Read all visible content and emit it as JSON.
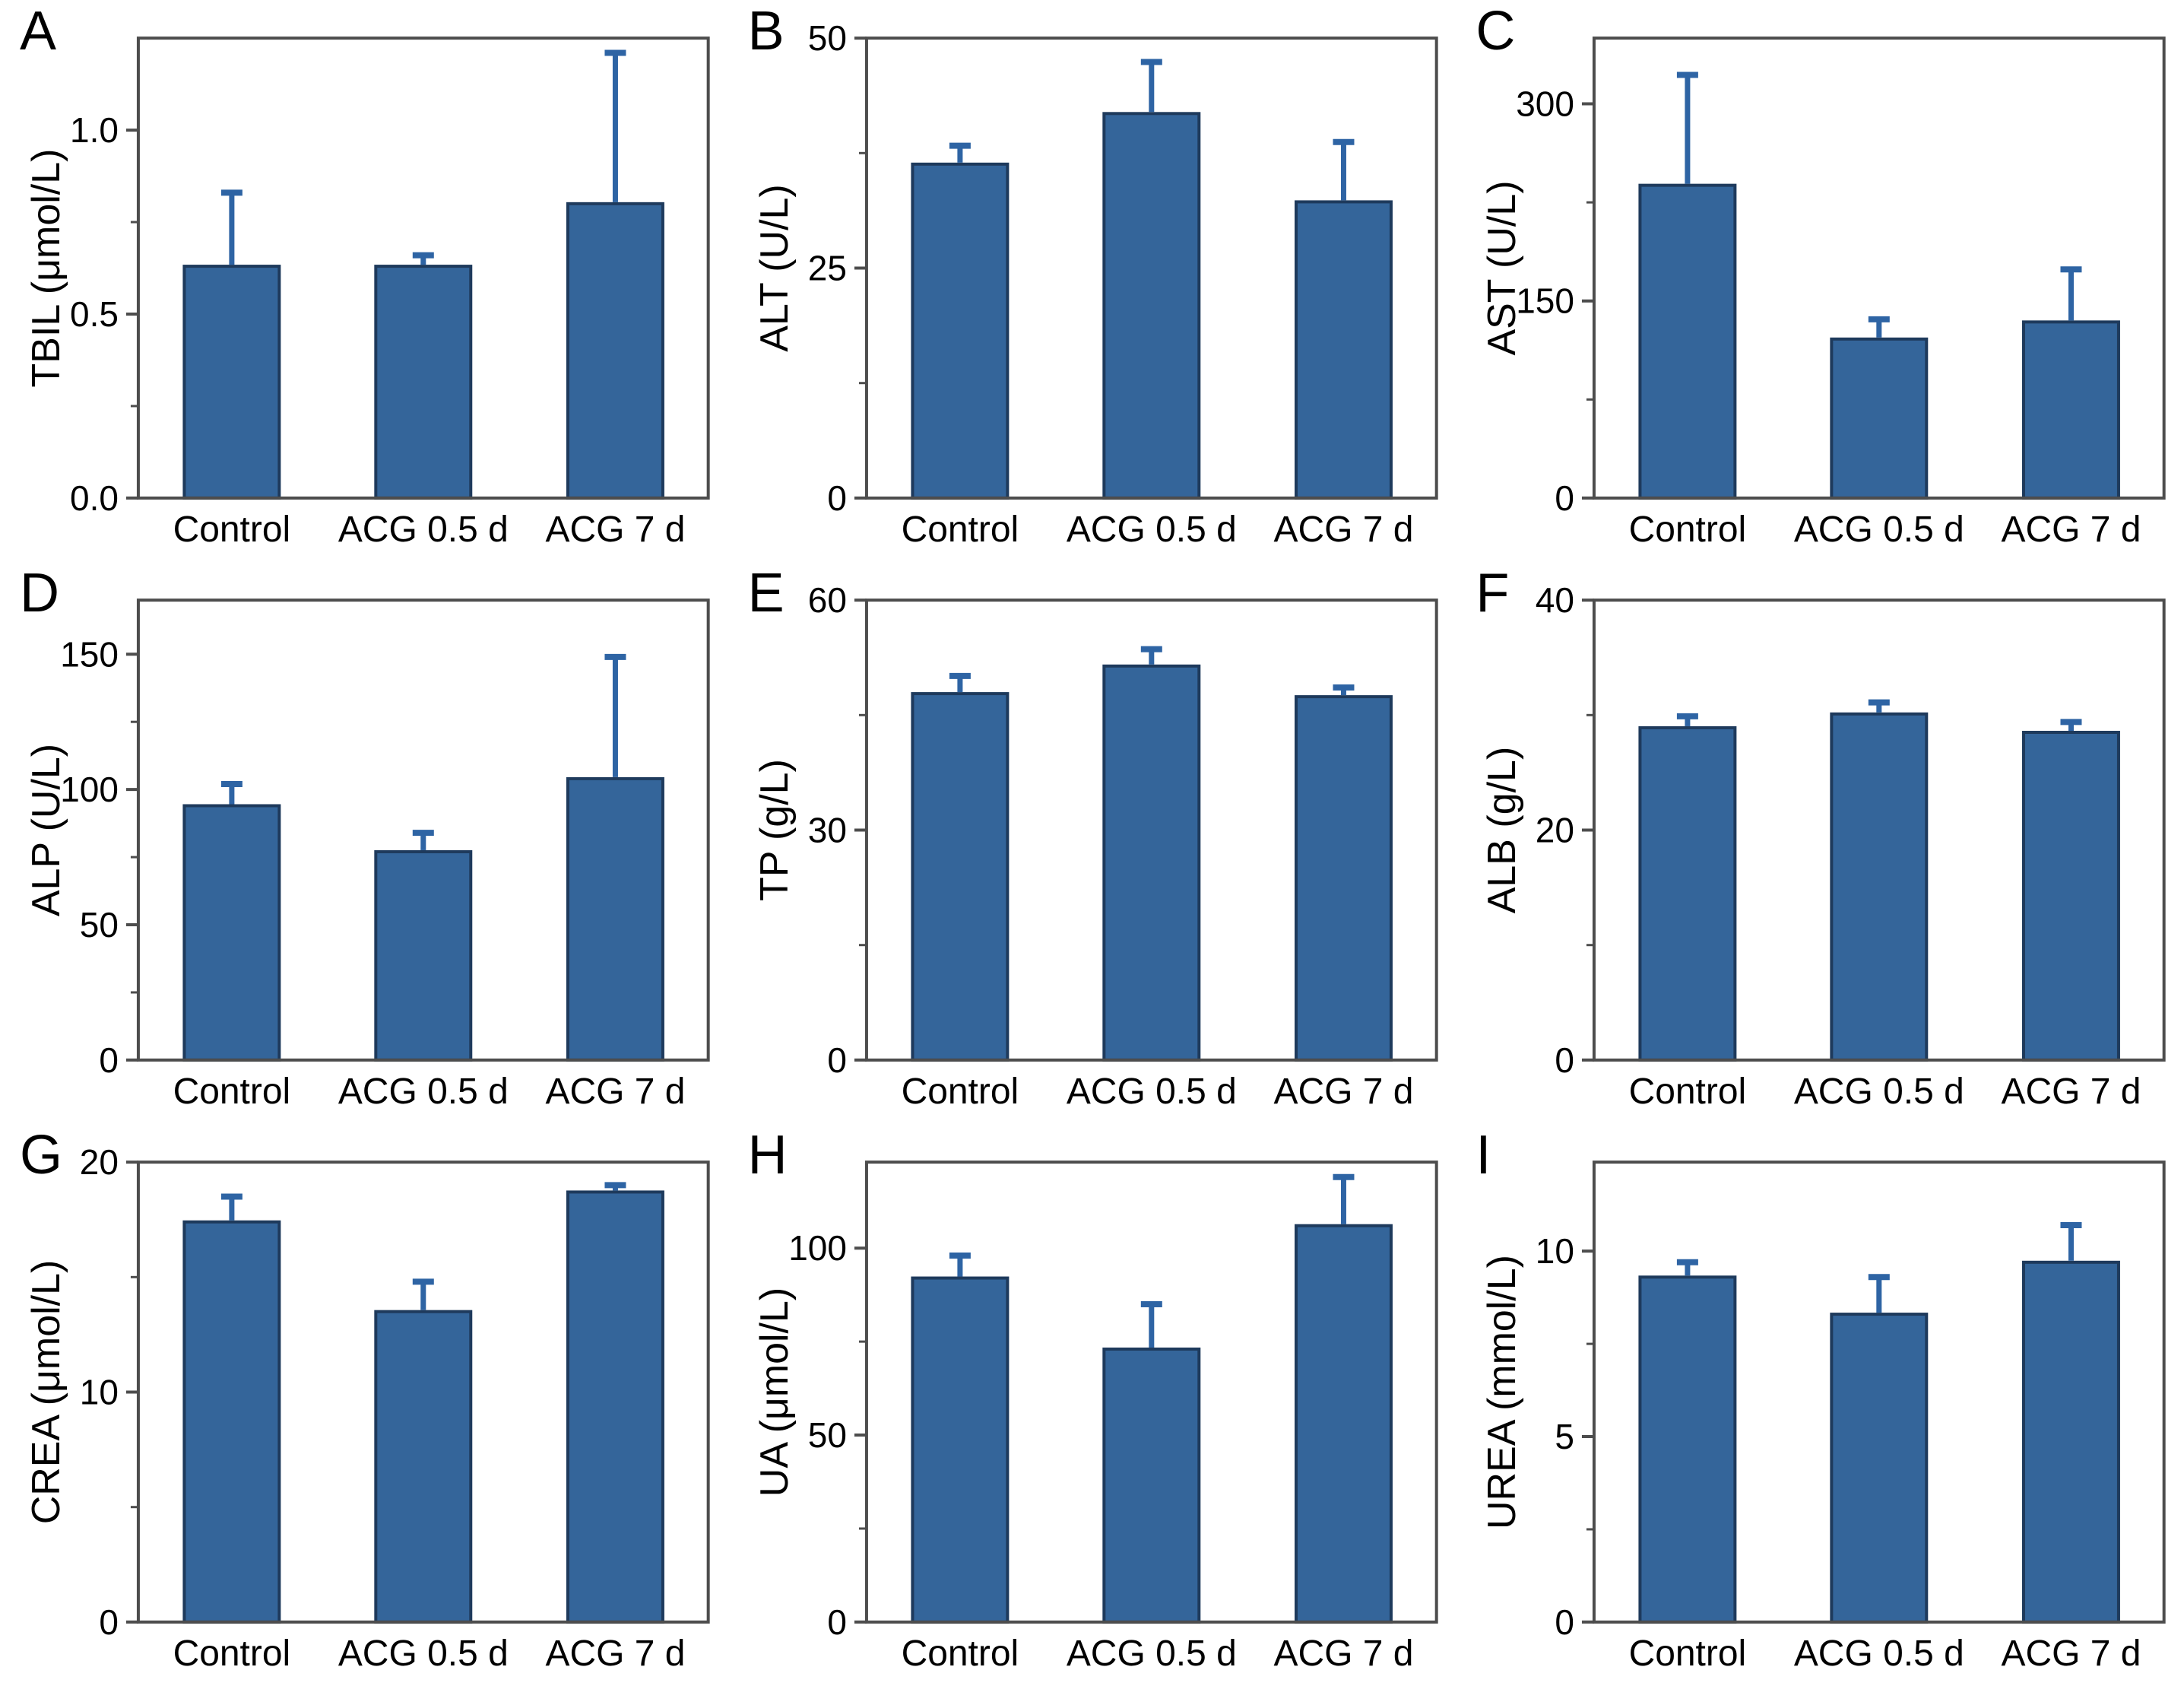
{
  "figure": {
    "description": "Nine-panel (A-I) serum biochemistry bar chart figure comparing Control, ACG 0.5 d and ACG 7 d groups, mean + SD error bars",
    "groups": [
      "Control",
      "ACG 0.5 d",
      "ACG 7 d"
    ]
  },
  "colors": {
    "bar_fill": "#34659a",
    "bar_edge": "#1e3a5c",
    "error_bar": "#2e64a4",
    "axis": "#4d4d4d",
    "text": "#000000",
    "background": "#ffffff"
  },
  "chart_data": [
    {
      "type": "bar",
      "panel": "A",
      "ylabel": "TBIL (μmol/L)",
      "categories": [
        "Control",
        "ACG 0.5 d",
        "ACG 7 d"
      ],
      "values": [
        0.63,
        0.63,
        0.8
      ],
      "errors_plus": [
        0.2,
        0.03,
        0.41
      ],
      "ylim": [
        0,
        1.25
      ],
      "yticks": [
        0.0,
        0.5,
        1.0
      ],
      "ytick_labels": [
        "0.0",
        "0.5",
        "1.0"
      ],
      "yminor_ticks": [
        0.25,
        0.75
      ],
      "legend": "none",
      "grid": "off"
    },
    {
      "type": "bar",
      "panel": "B",
      "ylabel": "ALT (U/L)",
      "categories": [
        "Control",
        "ACG 0.5 d",
        "ACG 7 d"
      ],
      "values": [
        36.3,
        41.8,
        32.2
      ],
      "errors_plus": [
        2.0,
        5.6,
        6.5
      ],
      "ylim": [
        0,
        50
      ],
      "yticks": [
        0,
        25,
        50
      ],
      "ytick_labels": [
        "0",
        "25",
        "50"
      ],
      "yminor_ticks": [
        12.5,
        37.5
      ],
      "legend": "none",
      "grid": "off"
    },
    {
      "type": "bar",
      "panel": "C",
      "ylabel": "AST (U/L)",
      "categories": [
        "Control",
        "ACG 0.5 d",
        "ACG 7 d"
      ],
      "values": [
        238,
        121,
        134
      ],
      "errors_plus": [
        84,
        15,
        40
      ],
      "ylim": [
        0,
        350
      ],
      "yticks": [
        0,
        150,
        300
      ],
      "ytick_labels": [
        "0",
        "150",
        "300"
      ],
      "yminor_ticks": [
        75,
        225
      ],
      "legend": "none",
      "grid": "off"
    },
    {
      "type": "bar",
      "panel": "D",
      "ylabel": "ALP (U/L)",
      "categories": [
        "Control",
        "ACG 0.5 d",
        "ACG 7 d"
      ],
      "values": [
        94,
        77,
        104
      ],
      "errors_plus": [
        8,
        7,
        45
      ],
      "ylim": [
        0,
        170
      ],
      "yticks": [
        0,
        50,
        100,
        150
      ],
      "ytick_labels": [
        "0",
        "50",
        "100",
        "150"
      ],
      "yminor_ticks": [
        25,
        75,
        125
      ],
      "legend": "none",
      "grid": "off"
    },
    {
      "type": "bar",
      "panel": "E",
      "ylabel": "TP (g/L)",
      "categories": [
        "Control",
        "ACG 0.5 d",
        "ACG 7 d"
      ],
      "values": [
        47.8,
        51.4,
        47.4
      ],
      "errors_plus": [
        2.3,
        2.2,
        1.2
      ],
      "ylim": [
        0,
        60
      ],
      "yticks": [
        0,
        30,
        60
      ],
      "ytick_labels": [
        "0",
        "30",
        "60"
      ],
      "yminor_ticks": [
        15,
        45
      ],
      "legend": "none",
      "grid": "off"
    },
    {
      "type": "bar",
      "panel": "F",
      "ylabel": "ALB (g/L)",
      "categories": [
        "Control",
        "ACG 0.5 d",
        "ACG 7 d"
      ],
      "values": [
        28.9,
        30.1,
        28.5
      ],
      "errors_plus": [
        1.0,
        1.0,
        0.9
      ],
      "ylim": [
        0,
        40
      ],
      "yticks": [
        0,
        20,
        40
      ],
      "ytick_labels": [
        "0",
        "20",
        "40"
      ],
      "yminor_ticks": [
        10,
        30
      ],
      "legend": "none",
      "grid": "off"
    },
    {
      "type": "bar",
      "panel": "G",
      "ylabel": "CREA (μmol/L)",
      "categories": [
        "Control",
        "ACG 0.5 d",
        "ACG 7 d"
      ],
      "values": [
        17.4,
        13.5,
        18.7
      ],
      "errors_plus": [
        1.1,
        1.3,
        0.3
      ],
      "ylim": [
        0,
        20
      ],
      "yticks": [
        0,
        10,
        20
      ],
      "ytick_labels": [
        "0",
        "10",
        "20"
      ],
      "yminor_ticks": [
        5,
        15
      ],
      "legend": "none",
      "grid": "off"
    },
    {
      "type": "bar",
      "panel": "H",
      "ylabel": "UA (μmol/L)",
      "categories": [
        "Control",
        "ACG 0.5 d",
        "ACG 7 d"
      ],
      "values": [
        92,
        73,
        106
      ],
      "errors_plus": [
        6,
        12,
        13
      ],
      "ylim": [
        0,
        123
      ],
      "yticks": [
        0,
        50,
        100
      ],
      "ytick_labels": [
        "0",
        "50",
        "100"
      ],
      "yminor_ticks": [
        25,
        75
      ],
      "legend": "none",
      "grid": "off"
    },
    {
      "type": "bar",
      "panel": "I",
      "ylabel": "UREA (mmol/L)",
      "categories": [
        "Control",
        "ACG 0.5 d",
        "ACG 7 d"
      ],
      "values": [
        9.3,
        8.3,
        9.7
      ],
      "errors_plus": [
        0.4,
        1.0,
        1.0
      ],
      "ylim": [
        0,
        12.4
      ],
      "yticks": [
        0,
        5,
        10
      ],
      "ytick_labels": [
        "0",
        "5",
        "10"
      ],
      "yminor_ticks": [
        2.5,
        7.5
      ],
      "legend": "none",
      "grid": "off"
    }
  ]
}
